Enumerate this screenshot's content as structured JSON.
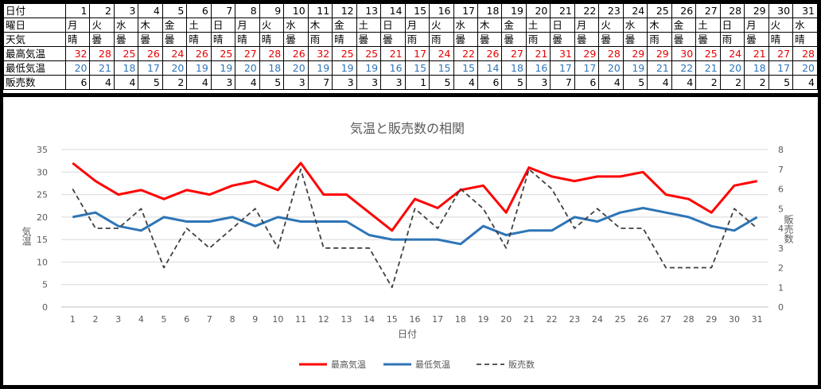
{
  "table": {
    "row_labels": {
      "day": "日付",
      "weekday": "曜日",
      "weather": "天気",
      "high": "最高気温",
      "low": "最低気温",
      "sales": "販売数"
    },
    "days": [
      1,
      2,
      3,
      4,
      5,
      6,
      7,
      8,
      9,
      10,
      11,
      12,
      13,
      14,
      15,
      16,
      17,
      18,
      19,
      20,
      21,
      22,
      23,
      24,
      25,
      26,
      27,
      28,
      29,
      30,
      31
    ],
    "weekdays": [
      "月",
      "火",
      "水",
      "木",
      "金",
      "土",
      "日",
      "月",
      "火",
      "水",
      "木",
      "金",
      "土",
      "日",
      "月",
      "火",
      "水",
      "木",
      "金",
      "土",
      "日",
      "月",
      "火",
      "水",
      "木",
      "金",
      "土",
      "日",
      "月",
      "火",
      "水"
    ],
    "weather": [
      "晴",
      "曇",
      "曇",
      "曇",
      "曇",
      "晴",
      "晴",
      "晴",
      "晴",
      "曇",
      "雨",
      "晴",
      "曇",
      "曇",
      "雨",
      "雨",
      "曇",
      "曇",
      "曇",
      "雨",
      "曇",
      "曇",
      "曇",
      "曇",
      "雨",
      "曇",
      "曇",
      "雨",
      "曇",
      "晴",
      "晴"
    ],
    "high": [
      32,
      28,
      25,
      26,
      24,
      26,
      25,
      27,
      28,
      26,
      32,
      25,
      25,
      21,
      17,
      24,
      22,
      26,
      27,
      21,
      31,
      29,
      28,
      29,
      29,
      30,
      25,
      24,
      21,
      27,
      28
    ],
    "low": [
      20,
      21,
      18,
      17,
      20,
      19,
      19,
      20,
      18,
      20,
      19,
      19,
      19,
      16,
      15,
      15,
      15,
      14,
      18,
      16,
      17,
      17,
      20,
      19,
      21,
      22,
      21,
      20,
      18,
      17,
      20
    ],
    "sales": [
      6,
      4,
      4,
      5,
      2,
      4,
      3,
      4,
      5,
      3,
      7,
      3,
      3,
      3,
      1,
      5,
      4,
      6,
      5,
      3,
      7,
      6,
      4,
      5,
      4,
      4,
      2,
      2,
      2,
      5,
      4
    ]
  },
  "colors": {
    "high": "#ff0000",
    "low": "#2e75b6",
    "sales": "#404040",
    "high_text": "#e60000",
    "low_text": "#2e75b6"
  },
  "chart_data": {
    "type": "line",
    "title": "気温と販売数の相関",
    "xlabel": "日付",
    "ylabel": "気温",
    "y2label": "販売数",
    "x": [
      1,
      2,
      3,
      4,
      5,
      6,
      7,
      8,
      9,
      10,
      11,
      12,
      13,
      14,
      15,
      16,
      17,
      18,
      19,
      20,
      21,
      22,
      23,
      24,
      25,
      26,
      27,
      28,
      29,
      30,
      31
    ],
    "ylim": [
      0,
      35
    ],
    "y_ticks": [
      0,
      5,
      10,
      15,
      20,
      25,
      30,
      35
    ],
    "y2lim": [
      0,
      8
    ],
    "y2_ticks": [
      0,
      1,
      2,
      3,
      4,
      5,
      6,
      7,
      8
    ],
    "grid": "horizontal",
    "legend_position": "bottom",
    "series": [
      {
        "name": "最高気温",
        "axis": "left",
        "style": "solid",
        "values": [
          32,
          28,
          25,
          26,
          24,
          26,
          25,
          27,
          28,
          26,
          32,
          25,
          25,
          21,
          17,
          24,
          22,
          26,
          27,
          21,
          31,
          29,
          28,
          29,
          29,
          30,
          25,
          24,
          21,
          27,
          28
        ]
      },
      {
        "name": "最低気温",
        "axis": "left",
        "style": "solid",
        "values": [
          20,
          21,
          18,
          17,
          20,
          19,
          19,
          20,
          18,
          20,
          19,
          19,
          19,
          16,
          15,
          15,
          15,
          14,
          18,
          16,
          17,
          17,
          20,
          19,
          21,
          22,
          21,
          20,
          18,
          17,
          20
        ]
      },
      {
        "name": "販売数",
        "axis": "right",
        "style": "dashed",
        "values": [
          6,
          4,
          4,
          5,
          2,
          4,
          3,
          4,
          5,
          3,
          7,
          3,
          3,
          3,
          1,
          5,
          4,
          6,
          5,
          3,
          7,
          6,
          4,
          5,
          4,
          4,
          2,
          2,
          2,
          5,
          4
        ]
      }
    ]
  }
}
